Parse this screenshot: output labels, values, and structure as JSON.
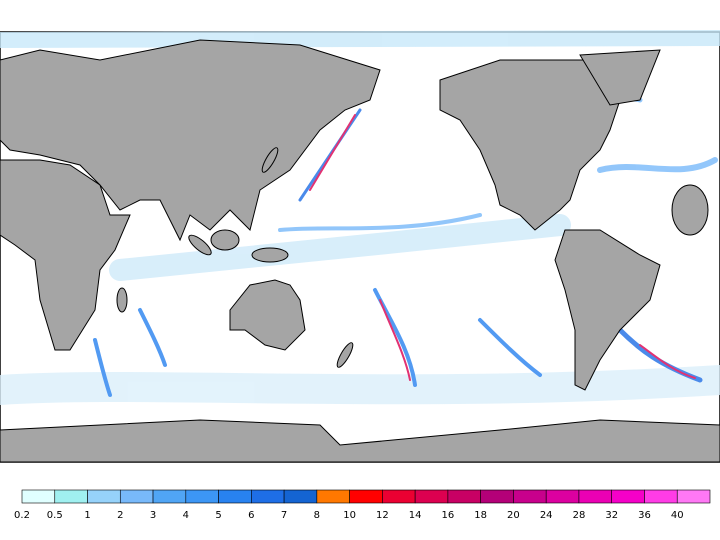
{
  "colorbar": {
    "labels": [
      0.2,
      0.5,
      1,
      2,
      3,
      4,
      5,
      6,
      7,
      8,
      10,
      12,
      14,
      16,
      18,
      20,
      24,
      28,
      32,
      36,
      40
    ],
    "colors": [
      "#e0ffff",
      "#a0f0f0",
      "#96d2fa",
      "#78b9fa",
      "#50a5f5",
      "#3c96f5",
      "#2882f0",
      "#1e6ee6",
      "#1464d2",
      "#ff7800",
      "#ff0000",
      "#eb0032",
      "#dc0050",
      "#c80064",
      "#b40078",
      "#c8008c",
      "#dc00a0",
      "#eb00b4",
      "#f500c8",
      "#ff3ce6",
      "#ff78f5"
    ]
  }
}
